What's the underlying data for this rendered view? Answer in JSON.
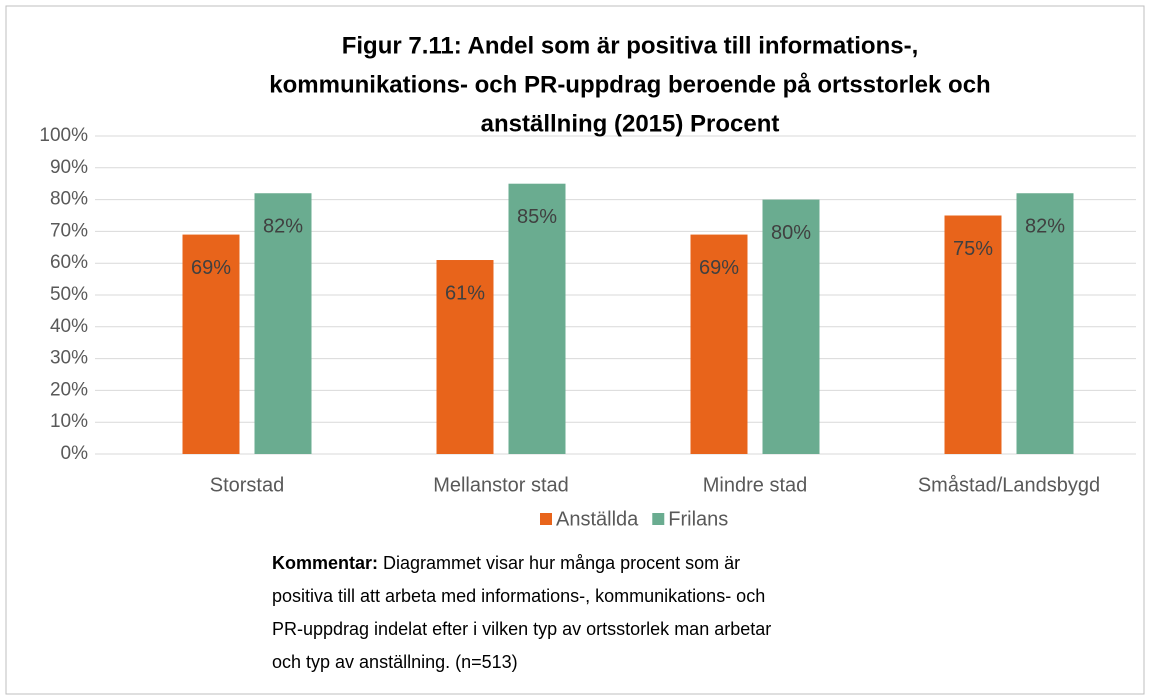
{
  "chart_data": {
    "type": "bar",
    "title": [
      "Figur 7.11: Andel som är positiva till informations-,",
      "kommunikations- och PR-uppdrag beroende på ortsstorlek och",
      "anställning (2015) Procent"
    ],
    "categories": [
      "Storstad",
      "Mellanstor stad",
      "Mindre stad",
      "Småstad/Landsbygd"
    ],
    "series": [
      {
        "name": "Anställda",
        "color": "#e8641b",
        "values": [
          69,
          61,
          69,
          75
        ],
        "value_labels": [
          "69%",
          "61%",
          "69%",
          "75%"
        ]
      },
      {
        "name": "Frilans",
        "color": "#6aac90",
        "values": [
          82,
          85,
          80,
          82
        ],
        "value_labels": [
          "82%",
          "85%",
          "80%",
          "82%"
        ]
      }
    ],
    "ylim": [
      0,
      100
    ],
    "yticks": [
      {
        "value": 0,
        "label": "0%"
      },
      {
        "value": 10,
        "label": "10%"
      },
      {
        "value": 20,
        "label": "20%"
      },
      {
        "value": 30,
        "label": "30%"
      },
      {
        "value": 40,
        "label": "40%"
      },
      {
        "value": 50,
        "label": "50%"
      },
      {
        "value": 60,
        "label": "60%"
      },
      {
        "value": 70,
        "label": "70%"
      },
      {
        "value": 80,
        "label": "80%"
      },
      {
        "value": 90,
        "label": "90%"
      },
      {
        "value": 100,
        "label": "100%"
      }
    ],
    "grid": true,
    "legend": "bottom"
  },
  "comment": {
    "label": "Kommentar:",
    "lines": [
      "Diagrammet visar hur många procent som är",
      "positiva till att arbeta med informations-, kommunikations- och",
      "PR-uppdrag indelat efter i vilken typ av ortsstorlek man arbetar",
      "och typ av anställning. (n=513)"
    ]
  }
}
